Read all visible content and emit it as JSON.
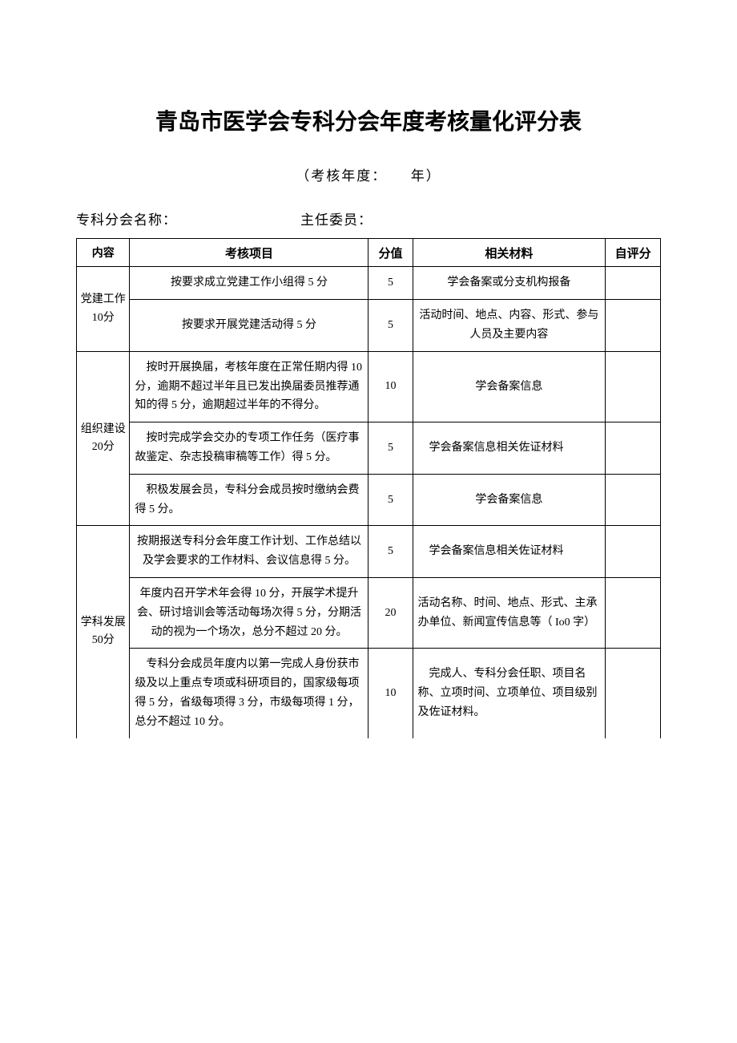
{
  "title": "青岛市医学会专科分会年度考核量化评分表",
  "subtitle_prefix": "（考核年度：",
  "subtitle_suffix": "　　年）",
  "field_branch_label": "专科分会名称：",
  "field_chair_label": "主任委员：",
  "headers": {
    "category": "内容",
    "item": "考核项目",
    "score": "分值",
    "material": "相关材料",
    "self": "自评分"
  },
  "categories": {
    "party": "党建工作 10分",
    "org": "组织建设 20分",
    "subject": "学科发展 50分"
  },
  "rows": [
    {
      "item": "按要求成立党建工作小组得 5 分",
      "score": "5",
      "material": "学会备案或分支机构报备"
    },
    {
      "item": "按要求开展党建活动得 5 分",
      "score": "5",
      "material": "活动时间、地点、内容、形式、参与人员及主要内容"
    },
    {
      "item": "按时开展换届，考核年度在正常任期内得 10 分，逾期不超过半年且已发出换届委员推荐通知的得 5 分，逾期超过半年的不得分。",
      "score": "10",
      "material": "学会备案信息"
    },
    {
      "item": "按时完成学会交办的专项工作任务（医疗事故鉴定、杂志投稿审稿等工作）得 5 分。",
      "score": "5",
      "material": "学会备案信息相关佐证材料"
    },
    {
      "item": "积极发展会员，专科分会成员按时缴纳会费得 5 分。",
      "score": "5",
      "material": "学会备案信息"
    },
    {
      "item": "按期报送专科分会年度工作计划、工作总结以及学会要求的工作材料、会议信息得 5 分。",
      "score": "5",
      "material": "学会备案信息相关佐证材料"
    },
    {
      "item": "年度内召开学术年会得 10 分，开展学术提升会、研讨培训会等活动每场次得 5 分，分期活动的视为一个场次，总分不超过 20 分。",
      "score": "20",
      "material": "活动名称、时间、地点、形式、主承办单位、新闻宣传信息等（ Io0 字）"
    },
    {
      "item": "专科分会成员年度内以第一完成人身份获市级及以上重点专项或科研项目的，国家级每项得 5 分，省级每项得 3 分，市级每项得 1 分，总分不超过 10 分。",
      "score": "10",
      "material": "完成人、专科分会任职、项目名称、立项时间、立项单位、项目级别及佐证材料。"
    }
  ]
}
